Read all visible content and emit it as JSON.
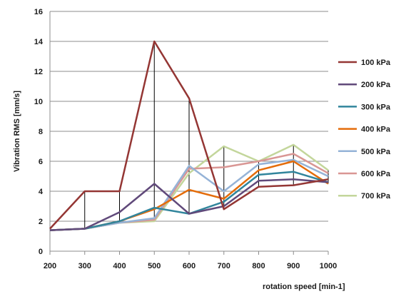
{
  "chart_data": {
    "type": "line",
    "xlabel": "rotation speed [min-1]",
    "ylabel": "Vibration RMS [mm/s]",
    "x": [
      200,
      300,
      400,
      500,
      600,
      700,
      800,
      900,
      1000
    ],
    "xlim": [
      200,
      1000
    ],
    "ylim": [
      0,
      16
    ],
    "yticks": [
      0,
      2,
      4,
      6,
      8,
      10,
      12,
      14,
      16
    ],
    "grid": "horizontal",
    "legend_position": "right",
    "drop_lines": true,
    "series": [
      {
        "name": "100 kPa",
        "color": "#943634",
        "values": [
          1.5,
          4.0,
          4.0,
          14.0,
          10.2,
          2.8,
          4.3,
          4.4,
          4.8
        ]
      },
      {
        "name": "200  kPa",
        "color": "#60497a",
        "values": [
          1.4,
          1.5,
          2.6,
          4.5,
          2.5,
          3.0,
          4.7,
          4.8,
          4.6
        ]
      },
      {
        "name": "300  kPa",
        "color": "#31859c",
        "values": [
          1.4,
          1.5,
          2.0,
          2.9,
          2.5,
          3.3,
          5.1,
          5.3,
          4.6
        ]
      },
      {
        "name": "400 kPa",
        "color": "#e46c0a",
        "values": [
          1.4,
          1.5,
          2.0,
          2.8,
          4.1,
          3.5,
          5.4,
          6.0,
          4.5
        ]
      },
      {
        "name": "500 kPa",
        "color": "#95b3d7",
        "values": [
          1.4,
          1.5,
          1.9,
          2.2,
          5.7,
          4.0,
          5.8,
          6.1,
          5.0
        ]
      },
      {
        "name": "600 kPa",
        "color": "#d99694",
        "values": [
          1.4,
          1.5,
          1.9,
          2.1,
          5.5,
          5.6,
          6.0,
          6.5,
          5.2
        ]
      },
      {
        "name": "700 kPa",
        "color": "#c3d69b",
        "values": [
          1.4,
          1.5,
          1.9,
          2.0,
          5.2,
          7.0,
          6.0,
          7.1,
          5.4
        ]
      }
    ]
  }
}
